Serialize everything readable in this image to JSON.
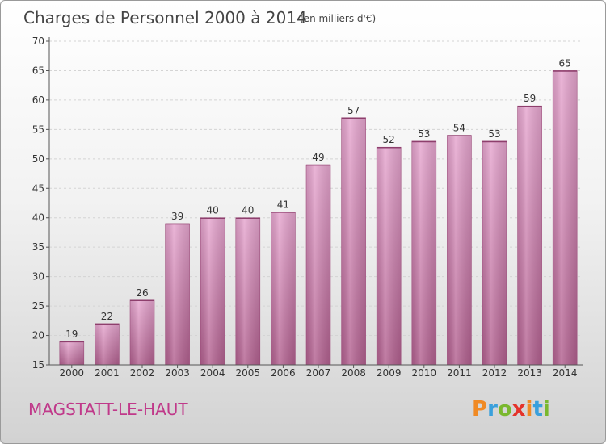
{
  "chart_data": {
    "type": "bar",
    "title": "Charges de Personnel 2000 à 2014",
    "subtitle": "(en milliers d'€)",
    "categories": [
      "2000",
      "2001",
      "2002",
      "2003",
      "2004",
      "2005",
      "2006",
      "2007",
      "2008",
      "2009",
      "2010",
      "2011",
      "2012",
      "2013",
      "2014"
    ],
    "values": [
      19,
      22,
      26,
      39,
      40,
      40,
      41,
      49,
      57,
      52,
      53,
      54,
      53,
      59,
      65
    ],
    "ylim": [
      15,
      70
    ],
    "yticks": [
      15,
      20,
      25,
      30,
      35,
      40,
      45,
      50,
      55,
      60,
      65,
      70
    ],
    "grid": true,
    "bar_color": "#d98cbb"
  },
  "location": "MAGSTATT-LE-HAUT",
  "logo": {
    "text": "Proxiti",
    "colors": [
      "#f08a24",
      "#3aa0dc",
      "#7ab82e",
      "#e4332a",
      "#f08a24",
      "#3aa0dc",
      "#7ab82e"
    ]
  }
}
